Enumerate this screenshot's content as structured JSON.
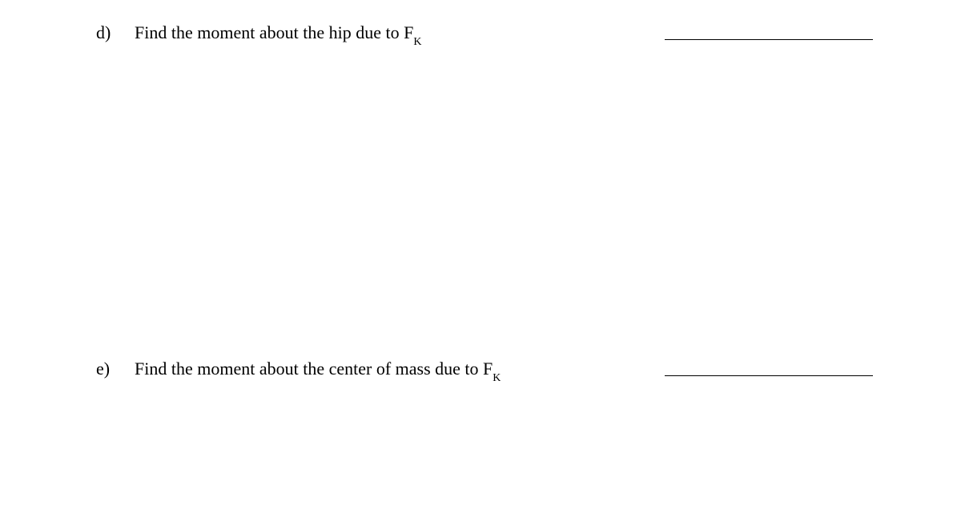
{
  "questions": {
    "d": {
      "label": "d)",
      "text_before": "Find the moment about the hip due to F",
      "subscript": "K"
    },
    "e": {
      "label": "e)",
      "text_before": "Find the moment about the center of mass due to F",
      "subscript": "K"
    }
  },
  "style": {
    "font_family": "Times New Roman",
    "text_color": "#000000",
    "background_color": "#ffffff",
    "font_size_main": 22,
    "font_size_sub": 14,
    "blank_line_width": 260,
    "blank_line_color": "#000000"
  }
}
